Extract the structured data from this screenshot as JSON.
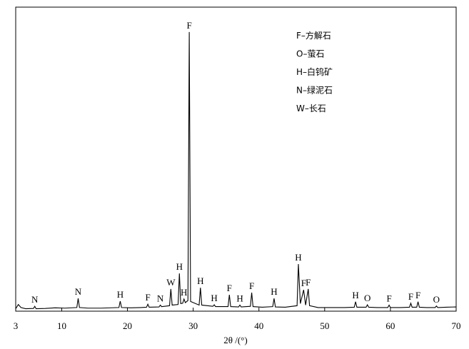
{
  "chart_data": {
    "type": "line",
    "x_label": "2θ /(°)",
    "xlim": [
      3,
      70
    ],
    "xticks": [
      3,
      10,
      20,
      30,
      40,
      50,
      60,
      70
    ],
    "ylim": [
      0,
      100
    ],
    "series": [
      {
        "color": "#000000",
        "x": [
          3,
          3.4,
          3.8,
          4.5,
          5.7,
          5.9,
          6.1,
          7.5,
          9,
          10.5,
          12.3,
          12.5,
          12.7,
          14,
          16,
          18.7,
          18.9,
          19.1,
          20.5,
          22,
          22.9,
          23.1,
          23.3,
          24.8,
          25.0,
          25.2,
          26.4,
          26.6,
          26.8,
          27.7,
          27.9,
          28.1,
          28.4,
          28.6,
          28.8,
          29.2,
          29.4,
          29.6,
          30.9,
          31.1,
          31.3,
          33.0,
          33.2,
          33.4,
          35.3,
          35.5,
          35.7,
          36.9,
          37.1,
          37.3,
          38.7,
          38.9,
          39.1,
          40.5,
          42.1,
          42.3,
          42.5,
          44,
          45.8,
          46.0,
          46.3,
          46.8,
          47.1,
          47.5,
          47.7,
          49,
          51,
          53,
          54.5,
          54.7,
          54.9,
          56.3,
          56.5,
          56.7,
          58,
          59.6,
          59.8,
          60,
          61.5,
          62.9,
          63.1,
          63.3,
          64.0,
          64.2,
          64.4,
          65.5,
          66.8,
          67.0,
          67.2,
          68.5,
          70
        ],
        "values": [
          0.8,
          2.2,
          1.2,
          0.8,
          0.9,
          1.6,
          0.8,
          0.9,
          1.1,
          1.0,
          1.2,
          4.2,
          1.2,
          1.0,
          1.0,
          1.2,
          3.3,
          1.2,
          1.1,
          1.2,
          1.3,
          2.3,
          1.3,
          1.4,
          2.0,
          1.5,
          1.8,
          7.3,
          2.0,
          2.2,
          12.4,
          2.5,
          2.6,
          4.0,
          2.8,
          3.5,
          91.8,
          3.2,
          2.0,
          7.7,
          2.0,
          1.6,
          2.1,
          1.5,
          1.5,
          5.4,
          1.5,
          1.4,
          2.0,
          1.4,
          1.6,
          6.1,
          1.5,
          1.3,
          1.5,
          4.2,
          1.4,
          1.3,
          1.8,
          15.5,
          2.5,
          7.0,
          2.0,
          7.3,
          1.8,
          1.2,
          1.2,
          1.2,
          1.3,
          3.1,
          1.3,
          1.3,
          2.1,
          1.3,
          1.2,
          1.2,
          2.0,
          1.2,
          1.2,
          1.3,
          2.6,
          1.3,
          1.3,
          3.1,
          1.3,
          1.2,
          1.2,
          1.7,
          1.2,
          1.3,
          1.4
        ]
      }
    ],
    "annotations": [
      {
        "text": "N",
        "x": 5.9,
        "y": 1.6
      },
      {
        "text": "N",
        "x": 12.5,
        "y": 4.2
      },
      {
        "text": "H",
        "x": 18.9,
        "y": 3.3
      },
      {
        "text": "F",
        "x": 23.1,
        "y": 2.3
      },
      {
        "text": "N",
        "x": 25.0,
        "y": 2.0
      },
      {
        "text": "W",
        "x": 26.6,
        "y": 7.3
      },
      {
        "text": "H",
        "x": 27.9,
        "y": 12.4
      },
      {
        "text": "H",
        "x": 28.6,
        "y": 4.0
      },
      {
        "text": "F",
        "x": 29.4,
        "y": 91.8
      },
      {
        "text": "H",
        "x": 31.1,
        "y": 7.7
      },
      {
        "text": "H",
        "x": 33.2,
        "y": 2.1
      },
      {
        "text": "F",
        "x": 35.5,
        "y": 5.4
      },
      {
        "text": "H",
        "x": 37.1,
        "y": 2.0
      },
      {
        "text": "F",
        "x": 38.9,
        "y": 6.1
      },
      {
        "text": "H",
        "x": 42.3,
        "y": 4.2
      },
      {
        "text": "H",
        "x": 46.0,
        "y": 15.5
      },
      {
        "text": "F",
        "x": 46.8,
        "y": 7.0
      },
      {
        "text": "F",
        "x": 47.5,
        "y": 7.3
      },
      {
        "text": "H",
        "x": 54.7,
        "y": 3.1
      },
      {
        "text": "O",
        "x": 56.5,
        "y": 2.1
      },
      {
        "text": "F",
        "x": 59.8,
        "y": 2.0
      },
      {
        "text": "F",
        "x": 63.1,
        "y": 2.6
      },
      {
        "text": "F",
        "x": 64.2,
        "y": 3.1
      },
      {
        "text": "O",
        "x": 67.0,
        "y": 1.7
      }
    ],
    "legend_text": [
      "F–方解石",
      "O–萤石",
      "H–白钨矿",
      "N–绿泥石",
      "W–长石"
    ]
  }
}
